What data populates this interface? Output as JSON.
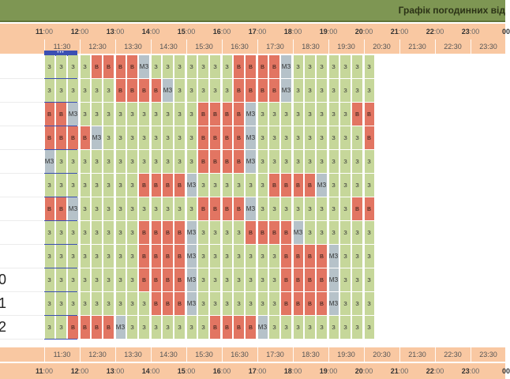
{
  "header": {
    "title": "Графік погодинних від"
  },
  "hour_marks": [
    {
      "h": "11",
      "m": ":00"
    },
    {
      "h": "12",
      "m": ":00"
    },
    {
      "h": "13",
      "m": ":00"
    },
    {
      "h": "14",
      "m": ":00"
    },
    {
      "h": "15",
      "m": ":00"
    },
    {
      "h": "16",
      "m": ":00"
    },
    {
      "h": "17",
      "m": ":00"
    },
    {
      "h": "18",
      "m": ":00"
    },
    {
      "h": "19",
      "m": ":00"
    },
    {
      "h": "20",
      "m": ":00"
    },
    {
      "h": "21",
      "m": ":00"
    },
    {
      "h": "22",
      "m": ":00"
    },
    {
      "h": "23",
      "m": ":00"
    },
    {
      "h": "00",
      "m": ""
    }
  ],
  "half_marks": [
    "11:30",
    "12:30",
    "13:30",
    "14:30",
    "15:30",
    "16:30",
    "17:30",
    "18:30",
    "19:30",
    "20:30",
    "21:30",
    "22:30",
    "23:30"
  ],
  "now_marker": "•••",
  "legend": {
    "z": "З",
    "v": "В",
    "m": "МЗ"
  },
  "row_labels": [
    "",
    "",
    "",
    "",
    "",
    "",
    "",
    "",
    "",
    "0",
    "1",
    "2"
  ],
  "rows": [
    "zzzzvvvvmzzzzzzzvvvvmzzzzzzz",
    "zzzzzzvvvvmzzzzzvvvvmzzzzzzz",
    "vvmzzzzzzzzzzvvvvmzzzzzzzzvv",
    "vvvvmzzzzzzzzvvvvmzzzzzzzzzv",
    "mzzzzzzzzzzzzvvvvmzzzzzzzzzz",
    "zzzzzzzzvvvvmzzzzzzvvvvmzzzz",
    "vvmzzzzzzzzzzvvvvmzzzzzzzzvv",
    "zzzzzzzzvvvvmzzzzvvvvmzzzzzz",
    "zzzzzzzzvvvvmzzzzzzzvvvvmzzz",
    "zzzzzzzzvvvvmzzzzzzzvvvvmzzz",
    "zzzzzzzzzvvvmzzzzzzzvvvvmzzz",
    "zzvvvvmzzzzzzzvvvvmzzzzzzzzz"
  ]
}
